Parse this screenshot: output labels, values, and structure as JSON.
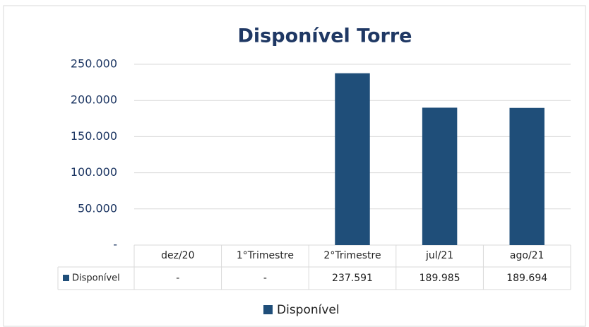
{
  "chart_data": {
    "type": "bar",
    "title": "Disponível Torre",
    "categories": [
      "dez/20",
      "1°Trimestre",
      "2°Trimestre",
      "jul/21",
      "ago/21"
    ],
    "series": [
      {
        "name": "Disponível",
        "color": "#1f4e79",
        "values": [
          0,
          0,
          237591,
          189985,
          189694
        ],
        "value_labels": [
          "-",
          "-",
          "237.591",
          "189.985",
          "189.694"
        ]
      }
    ],
    "ylim": [
      0,
      250000
    ],
    "yticks": [
      {
        "value": 0,
        "label": "-"
      },
      {
        "value": 50000,
        "label": "50.000"
      },
      {
        "value": 100000,
        "label": "100.000"
      },
      {
        "value": 150000,
        "label": "150.000"
      },
      {
        "value": 200000,
        "label": "200.000"
      },
      {
        "value": 250000,
        "label": "250.000"
      }
    ],
    "grid": true,
    "legend": "bottom"
  }
}
